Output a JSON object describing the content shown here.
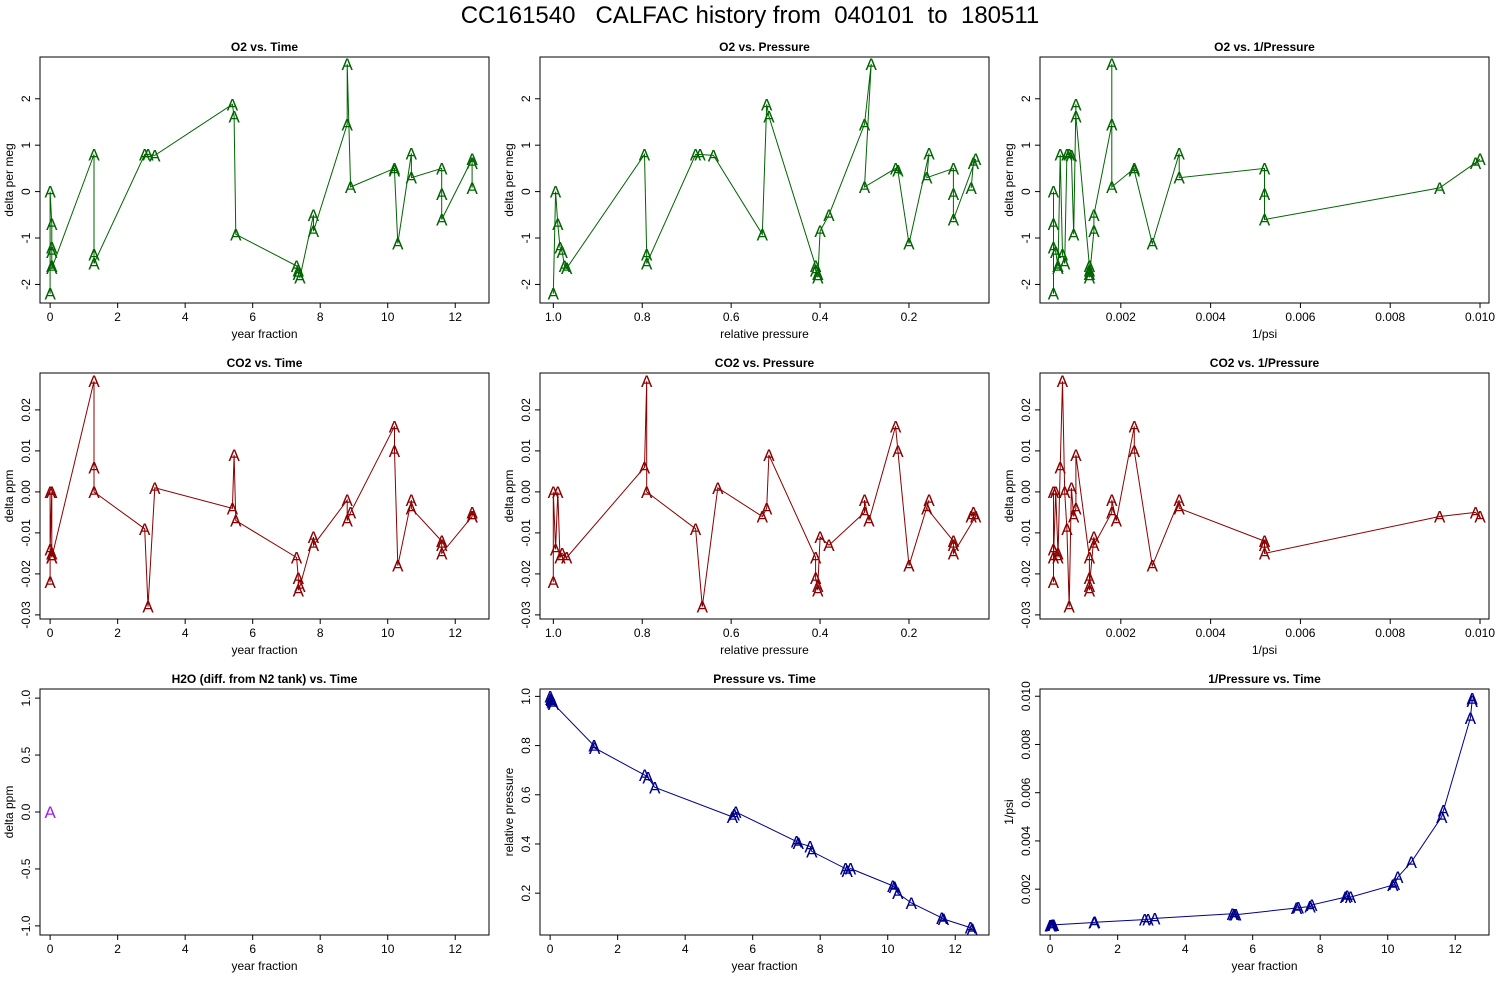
{
  "title": "CC161540   CALFAC history from  040101  to  180511",
  "colors": {
    "o2": "#006400",
    "co2": "#8b0000",
    "h2o": "#a020f0",
    "pressure": "#00008b",
    "axis": "#000000"
  },
  "marker": "A",
  "chart_data": [
    {
      "id": "o2-time",
      "type": "line",
      "title": "O2 vs. Time",
      "xlabel": "year fraction",
      "ylabel": "delta per meg",
      "color": "o2",
      "xlim": [
        -0.3,
        13
      ],
      "ylim": [
        -2.4,
        2.9
      ],
      "xticks": [
        0,
        2,
        4,
        6,
        8,
        10,
        12
      ],
      "yticks": [
        -2,
        -1,
        0,
        1,
        2
      ],
      "reverse_x": false,
      "x": [
        0,
        0,
        0.05,
        0.05,
        0.05,
        0.05,
        0.05,
        1.3,
        1.3,
        1.3,
        2.8,
        2.9,
        3.1,
        5.4,
        5.45,
        5.5,
        7.3,
        7.35,
        7.35,
        7.4,
        7.8,
        7.8,
        8.8,
        8.8,
        8.9,
        10.2,
        10.2,
        10.3,
        10.7,
        10.7,
        11.6,
        11.6,
        11.6,
        12.5,
        12.5,
        12.5
      ],
      "y": [
        -2.2,
        0,
        -0.7,
        -1.2,
        -1.3,
        -1.6,
        -1.65,
        0.8,
        -1.35,
        -1.55,
        0.8,
        0.8,
        0.78,
        1.88,
        1.62,
        -0.92,
        -1.6,
        -1.7,
        -1.78,
        -1.85,
        -0.5,
        -0.85,
        1.45,
        2.75,
        0.1,
        0.5,
        0.45,
        -1.12,
        0.82,
        0.3,
        0.5,
        -0.05,
        -0.6,
        0.7,
        0.62,
        0.08
      ]
    },
    {
      "id": "o2-pressure",
      "type": "line",
      "title": "O2 vs. Pressure",
      "xlabel": "relative pressure",
      "ylabel": "delta per meg",
      "color": "o2",
      "xlim": [
        1.03,
        0.02
      ],
      "ylim": [
        -2.4,
        2.9
      ],
      "xticks": [
        1.0,
        0.8,
        0.6,
        0.4,
        0.2
      ],
      "yticks": [
        -2,
        -1,
        0,
        1,
        2
      ],
      "reverse_x": true,
      "x": [
        1.0,
        0.995,
        0.99,
        0.985,
        0.98,
        0.975,
        0.97,
        0.795,
        0.79,
        0.79,
        0.68,
        0.67,
        0.64,
        0.53,
        0.52,
        0.515,
        0.41,
        0.41,
        0.405,
        0.405,
        0.4,
        0.38,
        0.3,
        0.285,
        0.3,
        0.23,
        0.225,
        0.2,
        0.155,
        0.16,
        0.1,
        0.1,
        0.1,
        0.05,
        0.055,
        0.06
      ],
      "y": [
        -2.2,
        0,
        -0.7,
        -1.2,
        -1.3,
        -1.6,
        -1.65,
        0.8,
        -1.35,
        -1.55,
        0.8,
        0.8,
        0.78,
        -0.92,
        1.88,
        1.62,
        -1.6,
        -1.7,
        -1.78,
        -1.85,
        -0.85,
        -0.5,
        1.45,
        2.75,
        0.1,
        0.5,
        0.45,
        -1.12,
        0.82,
        0.3,
        0.5,
        -0.05,
        -0.6,
        0.7,
        0.62,
        0.08
      ]
    },
    {
      "id": "o2-invpressure",
      "type": "line",
      "title": "O2 vs. 1/Pressure",
      "xlabel": "1/psi",
      "ylabel": "delta per meg",
      "color": "o2",
      "xlim": [
        0.0002,
        0.0102
      ],
      "ylim": [
        -2.4,
        2.9
      ],
      "xticks": [
        0.002,
        0.004,
        0.006,
        0.008,
        0.01
      ],
      "yticks": [
        -2,
        -1,
        0,
        1,
        2
      ],
      "reverse_x": false,
      "x": [
        0.0005,
        0.0005,
        0.0005,
        0.0005,
        0.00055,
        0.0006,
        0.0006,
        0.00065,
        0.0007,
        0.00075,
        0.0008,
        0.00085,
        0.0009,
        0.00095,
        0.001,
        0.001,
        0.0013,
        0.0013,
        0.0013,
        0.0013,
        0.0014,
        0.0014,
        0.0018,
        0.0018,
        0.0018,
        0.0023,
        0.0023,
        0.0027,
        0.0033,
        0.0033,
        0.0052,
        0.0052,
        0.0052,
        0.0091,
        0.0099,
        0.01
      ],
      "y": [
        -2.2,
        0,
        -0.7,
        -1.2,
        -1.3,
        -1.6,
        -1.65,
        0.8,
        -1.35,
        -1.55,
        0.8,
        0.8,
        0.78,
        -0.92,
        1.88,
        1.62,
        -1.6,
        -1.7,
        -1.78,
        -1.85,
        -0.85,
        -0.5,
        1.45,
        2.75,
        0.1,
        0.5,
        0.45,
        -1.12,
        0.82,
        0.3,
        0.5,
        -0.05,
        -0.6,
        0.08,
        0.62,
        0.7
      ]
    },
    {
      "id": "co2-time",
      "type": "line",
      "title": "CO2 vs. Time",
      "xlabel": "year fraction",
      "ylabel": "delta ppm",
      "color": "co2",
      "xlim": [
        -0.3,
        13
      ],
      "ylim": [
        -0.031,
        0.029
      ],
      "xticks": [
        0,
        2,
        4,
        6,
        8,
        10,
        12
      ],
      "yticks": [
        -0.03,
        -0.02,
        -0.01,
        0.0,
        0.01,
        0.02
      ],
      "reverse_x": false,
      "x": [
        0,
        0,
        0,
        0.05,
        0.05,
        0.05,
        0.05,
        1.3,
        1.3,
        1.3,
        2.8,
        2.9,
        3.1,
        5.4,
        5.45,
        5.5,
        7.3,
        7.35,
        7.35,
        7.4,
        7.8,
        7.8,
        8.8,
        8.8,
        8.9,
        10.2,
        10.2,
        10.3,
        10.7,
        10.7,
        11.6,
        11.6,
        11.6,
        12.5,
        12.5,
        12.5
      ],
      "y": [
        -0.022,
        0,
        -0.014,
        0,
        -0.016,
        -0.015,
        -0.016,
        0.027,
        0.006,
        0,
        -0.009,
        -0.028,
        0.001,
        -0.004,
        0.009,
        -0.007,
        -0.016,
        -0.021,
        -0.024,
        -0.023,
        -0.011,
        -0.013,
        -0.002,
        -0.007,
        -0.005,
        0.016,
        0.01,
        -0.018,
        -0.002,
        -0.004,
        -0.012,
        -0.013,
        -0.015,
        -0.006,
        -0.005,
        -0.006
      ]
    },
    {
      "id": "co2-pressure",
      "type": "line",
      "title": "CO2 vs. Pressure",
      "xlabel": "relative pressure",
      "ylabel": "delta ppm",
      "color": "co2",
      "xlim": [
        1.03,
        0.02
      ],
      "ylim": [
        -0.031,
        0.029
      ],
      "xticks": [
        1.0,
        0.8,
        0.6,
        0.4,
        0.2
      ],
      "yticks": [
        -0.03,
        -0.02,
        -0.01,
        0.0,
        0.01,
        0.02
      ],
      "reverse_x": true,
      "x": [
        1.0,
        1.0,
        0.995,
        0.99,
        0.985,
        0.98,
        0.97,
        0.795,
        0.79,
        0.79,
        0.68,
        0.665,
        0.63,
        0.53,
        0.52,
        0.515,
        0.41,
        0.41,
        0.405,
        0.405,
        0.4,
        0.38,
        0.3,
        0.3,
        0.29,
        0.23,
        0.225,
        0.2,
        0.155,
        0.16,
        0.1,
        0.1,
        0.1,
        0.05,
        0.055,
        0.06
      ],
      "y": [
        -0.022,
        0,
        -0.014,
        0,
        -0.016,
        -0.015,
        -0.016,
        0.006,
        0.027,
        0,
        -0.009,
        -0.028,
        0.001,
        -0.006,
        -0.004,
        0.009,
        -0.016,
        -0.021,
        -0.024,
        -0.023,
        -0.011,
        -0.013,
        -0.005,
        -0.002,
        -0.007,
        0.016,
        0.01,
        -0.018,
        -0.002,
        -0.004,
        -0.012,
        -0.013,
        -0.015,
        -0.006,
        -0.005,
        -0.006
      ]
    },
    {
      "id": "co2-invpressure",
      "type": "line",
      "title": "CO2 vs. 1/Pressure",
      "xlabel": "1/psi",
      "ylabel": "delta ppm",
      "color": "co2",
      "xlim": [
        0.0002,
        0.0102
      ],
      "ylim": [
        -0.031,
        0.029
      ],
      "xticks": [
        0.002,
        0.004,
        0.006,
        0.008,
        0.01
      ],
      "yticks": [
        -0.03,
        -0.02,
        -0.01,
        0.0,
        0.01,
        0.02
      ],
      "reverse_x": false,
      "x": [
        0.0005,
        0.0005,
        0.0005,
        0.0005,
        0.00055,
        0.0006,
        0.0006,
        0.00065,
        0.0007,
        0.00075,
        0.0008,
        0.00085,
        0.0009,
        0.00095,
        0.001,
        0.001,
        0.0013,
        0.0013,
        0.0013,
        0.0013,
        0.0014,
        0.0014,
        0.0018,
        0.0018,
        0.0019,
        0.0023,
        0.0023,
        0.0027,
        0.0033,
        0.0033,
        0.0052,
        0.0052,
        0.0052,
        0.0091,
        0.0099,
        0.01
      ],
      "y": [
        -0.022,
        0,
        -0.014,
        -0.016,
        0,
        -0.015,
        -0.016,
        0.006,
        0.027,
        0,
        -0.009,
        -0.028,
        0.001,
        -0.006,
        -0.004,
        0.009,
        -0.016,
        -0.021,
        -0.024,
        -0.023,
        -0.011,
        -0.013,
        -0.005,
        -0.002,
        -0.007,
        0.016,
        0.01,
        -0.018,
        -0.002,
        -0.004,
        -0.012,
        -0.013,
        -0.015,
        -0.006,
        -0.005,
        -0.006
      ]
    },
    {
      "id": "h2o-time",
      "type": "scatter",
      "title": "H2O (diff. from N2 tank) vs. Time",
      "xlabel": "year fraction",
      "ylabel": "delta ppm",
      "color": "h2o",
      "xlim": [
        -0.3,
        13
      ],
      "ylim": [
        -1.08,
        1.08
      ],
      "xticks": [
        0,
        2,
        4,
        6,
        8,
        10,
        12
      ],
      "yticks": [
        -1.0,
        -0.5,
        0.0,
        0.5,
        1.0
      ],
      "reverse_x": false,
      "x": [
        0
      ],
      "y": [
        0
      ]
    },
    {
      "id": "pressure-time",
      "type": "line",
      "title": "Pressure vs. Time",
      "xlabel": "year fraction",
      "ylabel": "relative pressure",
      "color": "pressure",
      "xlim": [
        -0.3,
        13
      ],
      "ylim": [
        0.03,
        1.03
      ],
      "xticks": [
        0,
        2,
        4,
        6,
        8,
        10,
        12
      ],
      "yticks": [
        0.2,
        0.4,
        0.6,
        0.8,
        1.0
      ],
      "reverse_x": false,
      "x": [
        0,
        0.02,
        0.04,
        0.06,
        0.08,
        0.1,
        1.3,
        1.32,
        2.8,
        2.9,
        3.1,
        5.4,
        5.45,
        5.5,
        7.3,
        7.35,
        7.7,
        7.75,
        8.75,
        8.8,
        8.9,
        10.15,
        10.2,
        10.3,
        10.7,
        11.6,
        11.65,
        12.45,
        12.5
      ],
      "y": [
        1.0,
        0.99,
        0.985,
        0.98,
        0.975,
        0.97,
        0.8,
        0.79,
        0.68,
        0.67,
        0.63,
        0.51,
        0.52,
        0.53,
        0.41,
        0.405,
        0.39,
        0.37,
        0.3,
        0.29,
        0.3,
        0.23,
        0.225,
        0.2,
        0.16,
        0.1,
        0.095,
        0.06,
        0.055
      ]
    },
    {
      "id": "invpressure-time",
      "type": "line",
      "title": "1/Pressure vs. Time",
      "xlabel": "year fraction",
      "ylabel": "1/psi",
      "color": "pressure",
      "xlim": [
        -0.3,
        13
      ],
      "ylim": [
        0.0001,
        0.0103
      ],
      "xticks": [
        0,
        2,
        4,
        6,
        8,
        10,
        12
      ],
      "yticks": [
        0.002,
        0.004,
        0.006,
        0.008,
        0.01
      ],
      "reverse_x": false,
      "x": [
        0,
        0.02,
        0.04,
        0.06,
        0.08,
        0.1,
        1.3,
        1.32,
        2.8,
        2.9,
        3.1,
        5.4,
        5.45,
        5.5,
        7.3,
        7.35,
        7.7,
        7.75,
        8.75,
        8.8,
        8.9,
        10.15,
        10.2,
        10.3,
        10.7,
        11.6,
        11.65,
        12.45,
        12.5,
        12.5
      ],
      "y": [
        0.00049,
        0.0005,
        0.0005,
        0.00051,
        0.00051,
        0.00052,
        0.00062,
        0.00063,
        0.00074,
        0.00075,
        0.00079,
        0.00098,
        0.00096,
        0.00094,
        0.00122,
        0.00123,
        0.00128,
        0.00135,
        0.00167,
        0.00172,
        0.00167,
        0.00217,
        0.00222,
        0.0025,
        0.00313,
        0.005,
        0.00526,
        0.0091,
        0.0098,
        0.0099
      ]
    }
  ]
}
